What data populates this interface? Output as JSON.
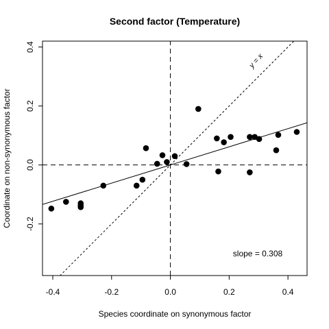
{
  "chart_data": {
    "type": "scatter",
    "title": "Second factor (Temperature)",
    "xlabel": "Species coordinate on synonymous factor",
    "ylabel": "Coordinate on non-synonymous factor",
    "xlim": [
      -0.435,
      0.465
    ],
    "ylim": [
      -0.375,
      0.42
    ],
    "xticks": [
      -0.4,
      -0.2,
      0.0,
      0.2,
      0.4
    ],
    "xtick_labels": [
      "-0.4",
      "-0.2",
      "0.0",
      "0.2",
      "0.4"
    ],
    "yticks": [
      -0.2,
      0.0,
      0.2,
      0.4
    ],
    "ytick_labels": [
      "-0.2",
      "0.0",
      "0.2",
      "0.4"
    ],
    "grid": false,
    "x": [
      -0.405,
      -0.355,
      -0.305,
      -0.305,
      -0.305,
      -0.228,
      -0.115,
      -0.095,
      -0.083,
      -0.045,
      -0.027,
      -0.012,
      0.015,
      0.055,
      0.095,
      0.158,
      0.163,
      0.182,
      0.205,
      0.27,
      0.27,
      0.287,
      0.302,
      0.36,
      0.367,
      0.43
    ],
    "y": [
      -0.148,
      -0.125,
      -0.13,
      -0.137,
      -0.143,
      -0.07,
      -0.07,
      -0.05,
      0.057,
      0.004,
      0.033,
      0.01,
      0.03,
      0.003,
      0.19,
      0.09,
      -0.022,
      0.077,
      0.095,
      0.095,
      -0.025,
      0.095,
      0.088,
      0.05,
      0.102,
      0.112
    ],
    "fit_line": {
      "slope": 0.308,
      "intercept": 0.0
    },
    "identity_line_label": "y = x",
    "slope_annotation": "slope =  0.308"
  }
}
